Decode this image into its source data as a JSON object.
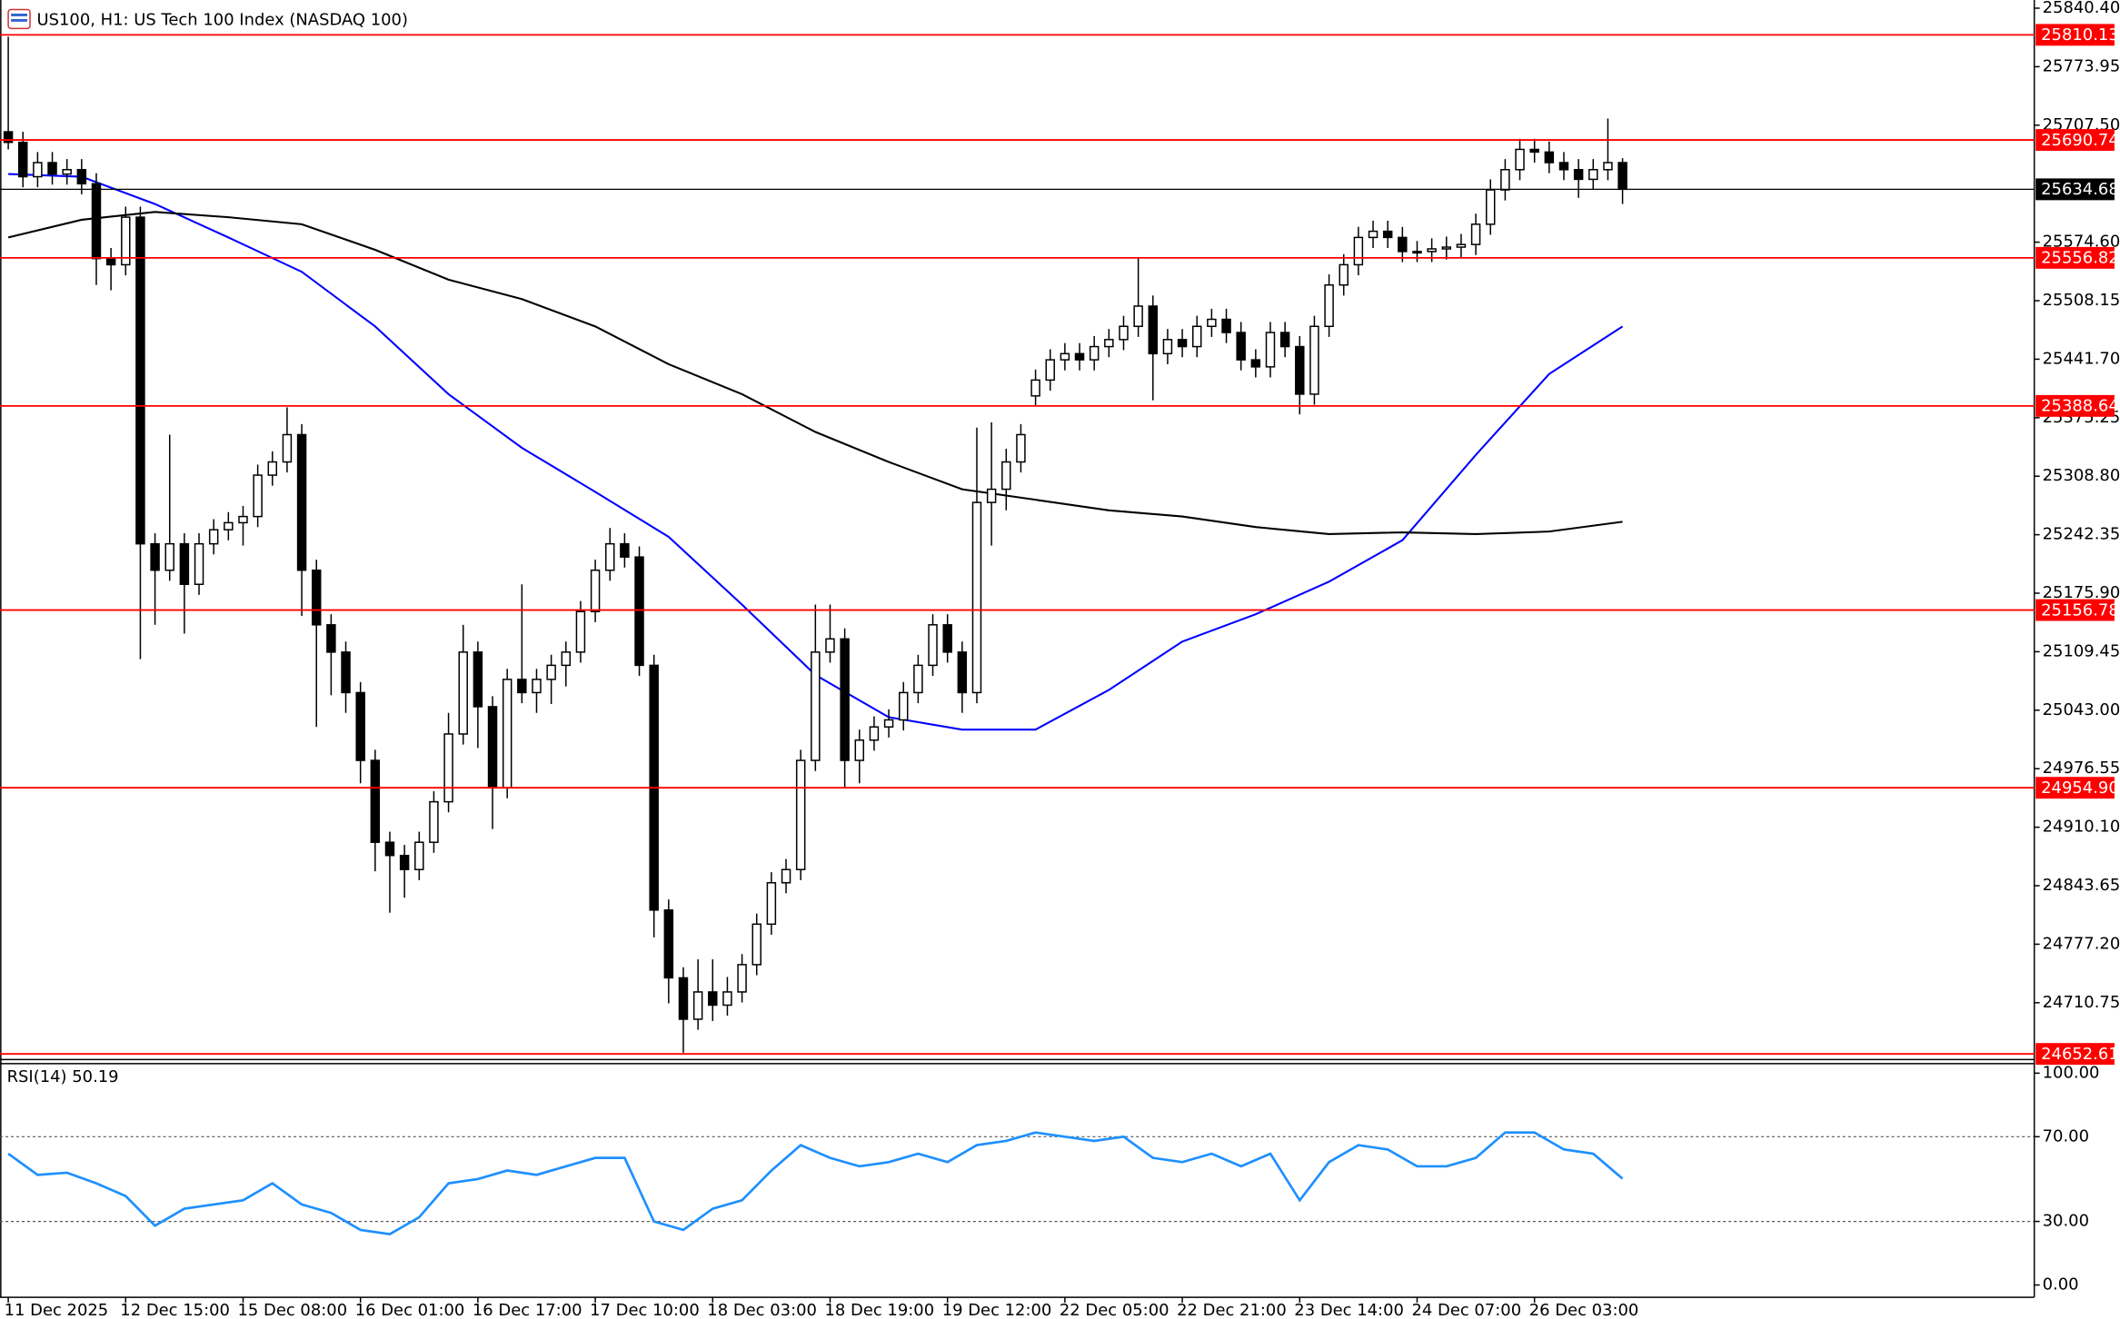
{
  "chart_data": {
    "type": "candlestick",
    "title": "US100, H1:  US Tech 100 Index (NASDAQ 100)",
    "categories": [
      "11 Dec 2025",
      null,
      null,
      null,
      null,
      null,
      null,
      null,
      "12 Dec 15:00",
      null,
      null,
      null,
      null,
      null,
      null,
      null,
      "15 Dec 08:00",
      null,
      null,
      null,
      null,
      null,
      null,
      null,
      "16 Dec 01:00",
      null,
      null,
      null,
      null,
      null,
      null,
      null,
      "16 Dec 17:00",
      null,
      null,
      null,
      null,
      null,
      null,
      null,
      "17 Dec 10:00",
      null,
      null,
      null,
      null,
      null,
      null,
      null,
      "18 Dec 03:00",
      null,
      null,
      null,
      null,
      null,
      null,
      null,
      "18 Dec 19:00",
      null,
      null,
      null,
      null,
      null,
      null,
      null,
      "19 Dec 12:00",
      null,
      null,
      null,
      null,
      null,
      null,
      null,
      "22 Dec 05:00",
      null,
      null,
      null,
      null,
      null,
      null,
      null,
      "22 Dec 21:00",
      null,
      null,
      null,
      null,
      null,
      null,
      null,
      "23 Dec 14:00",
      null,
      null,
      null,
      null,
      null,
      null,
      null,
      "24 Dec 07:00",
      null,
      null,
      null,
      null,
      null,
      null,
      null,
      "26 Dec 03:00",
      null,
      null,
      null,
      null,
      null,
      null
    ],
    "ohlc": [
      [
        25700,
        25808,
        25680,
        25688
      ],
      [
        25688,
        25700,
        25637,
        25649
      ],
      [
        25649,
        25677,
        25637,
        25665
      ],
      [
        25665,
        25677,
        25640,
        25652
      ],
      [
        25652,
        25669,
        25640,
        25657
      ],
      [
        25657,
        25669,
        25629,
        25641
      ],
      [
        25641,
        25653,
        25526,
        25556
      ],
      [
        25556,
        25568,
        25520,
        25549
      ],
      [
        25549,
        25615,
        25537,
        25603
      ],
      [
        25603,
        25615,
        25101,
        25232
      ],
      [
        25232,
        25244,
        25140,
        25202
      ],
      [
        25202,
        25356,
        25190,
        25232
      ],
      [
        25232,
        25244,
        25130,
        25186
      ],
      [
        25186,
        25244,
        25174,
        25232
      ],
      [
        25232,
        25260,
        25220,
        25248
      ],
      [
        25248,
        25268,
        25236,
        25256
      ],
      [
        25256,
        25275,
        25230,
        25263
      ],
      [
        25263,
        25322,
        25251,
        25310
      ],
      [
        25310,
        25337,
        25298,
        25325
      ],
      [
        25325,
        25387,
        25313,
        25356
      ],
      [
        25356,
        25368,
        25150,
        25202
      ],
      [
        25202,
        25214,
        25024,
        25140
      ],
      [
        25140,
        25152,
        25060,
        25109
      ],
      [
        25109,
        25121,
        25040,
        25063
      ],
      [
        25063,
        25075,
        24960,
        24986
      ],
      [
        24986,
        24998,
        24860,
        24893
      ],
      [
        24893,
        24905,
        24813,
        24878
      ],
      [
        24878,
        24890,
        24830,
        24862
      ],
      [
        24862,
        24905,
        24850,
        24893
      ],
      [
        24893,
        24951,
        24881,
        24939
      ],
      [
        24939,
        25040,
        24927,
        25016
      ],
      [
        25016,
        25140,
        25004,
        25109
      ],
      [
        25109,
        25121,
        25000,
        25047
      ],
      [
        25047,
        25059,
        24908,
        24955
      ],
      [
        24955,
        25090,
        24943,
        25078
      ],
      [
        25078,
        25186,
        25051,
        25063
      ],
      [
        25063,
        25090,
        25040,
        25078
      ],
      [
        25078,
        25106,
        25050,
        25094
      ],
      [
        25094,
        25121,
        25070,
        25109
      ],
      [
        25109,
        25167,
        25097,
        25155
      ],
      [
        25155,
        25214,
        25143,
        25202
      ],
      [
        25202,
        25250,
        25190,
        25232
      ],
      [
        25232,
        25244,
        25205,
        25217
      ],
      [
        25217,
        25229,
        25082,
        25094
      ],
      [
        25094,
        25106,
        24785,
        24816
      ],
      [
        24816,
        24828,
        24710,
        24739
      ],
      [
        24739,
        24751,
        24654,
        24692
      ],
      [
        24692,
        24760,
        24680,
        24723
      ],
      [
        24723,
        24760,
        24690,
        24708
      ],
      [
        24708,
        24740,
        24696,
        24723
      ],
      [
        24723,
        24766,
        24711,
        24754
      ],
      [
        24754,
        24812,
        24742,
        24800
      ],
      [
        24800,
        24859,
        24788,
        24847
      ],
      [
        24847,
        24874,
        24835,
        24862
      ],
      [
        24862,
        24998,
        24850,
        24986
      ],
      [
        24986,
        25163,
        24974,
        25109
      ],
      [
        25109,
        25163,
        25097,
        25124
      ],
      [
        25124,
        25136,
        24955,
        24986
      ],
      [
        24986,
        25021,
        24960,
        25009
      ],
      [
        25009,
        25036,
        24997,
        25024
      ],
      [
        25024,
        25044,
        25012,
        25032
      ],
      [
        25032,
        25075,
        25020,
        25063
      ],
      [
        25063,
        25106,
        25051,
        25094
      ],
      [
        25094,
        25152,
        25082,
        25140
      ],
      [
        25140,
        25152,
        25097,
        25109
      ],
      [
        25109,
        25121,
        25040,
        25063
      ],
      [
        25063,
        25364,
        25051,
        25279
      ],
      [
        25279,
        25370,
        25230,
        25294
      ],
      [
        25294,
        25340,
        25270,
        25325
      ],
      [
        25325,
        25368,
        25313,
        25356
      ],
      [
        25400,
        25430,
        25388,
        25418
      ],
      [
        25418,
        25453,
        25406,
        25441
      ],
      [
        25441,
        25460,
        25429,
        25448
      ],
      [
        25448,
        25460,
        25429,
        25441
      ],
      [
        25441,
        25468,
        25429,
        25456
      ],
      [
        25456,
        25476,
        25444,
        25464
      ],
      [
        25464,
        25491,
        25452,
        25479
      ],
      [
        25479,
        25556,
        25467,
        25502
      ],
      [
        25502,
        25514,
        25395,
        25448
      ],
      [
        25448,
        25476,
        25436,
        25464
      ],
      [
        25464,
        25476,
        25444,
        25456
      ],
      [
        25456,
        25491,
        25444,
        25479
      ],
      [
        25479,
        25499,
        25467,
        25487
      ],
      [
        25487,
        25499,
        25460,
        25472
      ],
      [
        25472,
        25484,
        25429,
        25441
      ],
      [
        25441,
        25453,
        25421,
        25433
      ],
      [
        25433,
        25484,
        25421,
        25472
      ],
      [
        25472,
        25484,
        25444,
        25456
      ],
      [
        25456,
        25468,
        25379,
        25402
      ],
      [
        25402,
        25491,
        25390,
        25479
      ],
      [
        25479,
        25538,
        25467,
        25526
      ],
      [
        25526,
        25561,
        25514,
        25549
      ],
      [
        25549,
        25592,
        25537,
        25580
      ],
      [
        25580,
        25599,
        25568,
        25587
      ],
      [
        25587,
        25599,
        25568,
        25580
      ],
      [
        25580,
        25592,
        25552,
        25564
      ],
      [
        25564,
        25576,
        25552,
        25564
      ],
      [
        25564,
        25579,
        25552,
        25567
      ],
      [
        25567,
        25581,
        25555,
        25569
      ],
      [
        25569,
        25584,
        25557,
        25572
      ],
      [
        25572,
        25607,
        25560,
        25595
      ],
      [
        25595,
        25646,
        25583,
        25634
      ],
      [
        25634,
        25669,
        25622,
        25657
      ],
      [
        25657,
        25692,
        25645,
        25680
      ],
      [
        25680,
        25692,
        25665,
        25677
      ],
      [
        25677,
        25689,
        25653,
        25665
      ],
      [
        25665,
        25677,
        25645,
        25657
      ],
      [
        25657,
        25669,
        25625,
        25646
      ],
      [
        25646,
        25669,
        25634,
        25657
      ],
      [
        25657,
        25715,
        25645,
        25665
      ],
      [
        25665,
        25670,
        25618,
        25634.68
      ]
    ],
    "ylim": [
      24646.2,
      25849.7
    ],
    "yticks": [
      {
        "value": 25840.4,
        "label": "25840.40"
      },
      {
        "value": 25773.95,
        "label": "25773.95"
      },
      {
        "value": 25707.5,
        "label": "25707.50"
      },
      {
        "value": 25574.6,
        "label": "25574.60"
      },
      {
        "value": 25508.15,
        "label": "25508.15"
      },
      {
        "value": 25441.7,
        "label": "25441.70"
      },
      {
        "value": 25375.25,
        "label": "25375.25"
      },
      {
        "value": 25308.8,
        "label": "25308.80"
      },
      {
        "value": 25242.35,
        "label": "25242.35"
      },
      {
        "value": 25175.9,
        "label": "25175.90"
      },
      {
        "value": 25109.45,
        "label": "25109.45"
      },
      {
        "value": 25043,
        "label": "25043.00"
      },
      {
        "value": 24976.55,
        "label": "24976.55"
      },
      {
        "value": 24910.1,
        "label": "24910.10"
      },
      {
        "value": 24843.65,
        "label": "24843.65"
      },
      {
        "value": 24777.2,
        "label": "24777.20"
      },
      {
        "value": 24710.75,
        "label": "24710.75"
      }
    ],
    "levels": {
      "color": "#ff0000",
      "values": [
        25810.13,
        25690.74,
        25556.82,
        25388.64,
        25156.78,
        24954.9,
        24652.61
      ],
      "value_labels": [
        "25810.13",
        "25690.74",
        "25556.82",
        "25388.64",
        "25156.78",
        "24954.90",
        "24652.61"
      ]
    },
    "current_price": 25634.68,
    "overlays": [
      {
        "color": "#0000ff",
        "x": [
          0,
          5,
          10,
          15,
          20,
          25,
          30,
          35,
          40,
          45,
          50,
          55,
          60,
          65,
          70,
          75,
          80,
          85,
          90,
          95,
          100,
          105,
          110
        ],
        "values": [
          25652,
          25649,
          25618,
          25580,
          25541,
          25479,
          25402,
          25341,
          25291,
          25240,
          25163,
          25083,
          25035,
          25021,
          25021,
          25066,
          25121,
          25152,
          25189,
          25236,
          25333,
          25425,
          25479
        ]
      },
      {
        "color": "#000000",
        "x": [
          0,
          5,
          10,
          15,
          20,
          25,
          30,
          35,
          40,
          45,
          50,
          55,
          60,
          65,
          70,
          75,
          80,
          85,
          90,
          95,
          100,
          105,
          110
        ],
        "values": [
          25580,
          25600,
          25609,
          25603,
          25595,
          25566,
          25532,
          25510,
          25479,
          25436,
          25402,
          25359,
          25325,
          25294,
          25282,
          25270,
          25263,
          25251,
          25243,
          25245,
          25243,
          25246,
          25257
        ]
      }
    ],
    "rsi": {
      "title": "RSI(14) 50.19",
      "color": "#1e90ff",
      "x": [
        0,
        2,
        4,
        6,
        8,
        10,
        12,
        14,
        16,
        18,
        20,
        22,
        24,
        26,
        28,
        30,
        32,
        34,
        36,
        38,
        40,
        42,
        44,
        46,
        48,
        50,
        52,
        54,
        56,
        58,
        60,
        62,
        64,
        66,
        68,
        70,
        72,
        74,
        76,
        78,
        80,
        82,
        84,
        86,
        88,
        90,
        92,
        94,
        96,
        98,
        100,
        102,
        104,
        106,
        108,
        110
      ],
      "values": [
        62,
        52,
        53,
        48,
        42,
        28,
        36,
        38,
        40,
        48,
        38,
        34,
        26,
        24,
        32,
        48,
        50,
        54,
        52,
        56,
        60,
        60,
        30,
        26,
        36,
        40,
        54,
        66,
        60,
        56,
        58,
        62,
        58,
        66,
        68,
        72,
        70,
        68,
        70,
        60,
        58,
        62,
        56,
        62,
        40,
        58,
        66,
        64,
        56,
        56,
        60,
        72,
        72,
        64,
        62,
        50.19
      ],
      "ylim": [
        -5.8,
        104.5
      ],
      "yticks": [
        {
          "value": 100,
          "label": "100.00"
        },
        {
          "value": 70,
          "label": "70.00"
        },
        {
          "value": 30,
          "label": "30.00"
        },
        {
          "value": 0,
          "label": "0.00"
        }
      ],
      "levels": [
        70,
        30
      ]
    }
  }
}
